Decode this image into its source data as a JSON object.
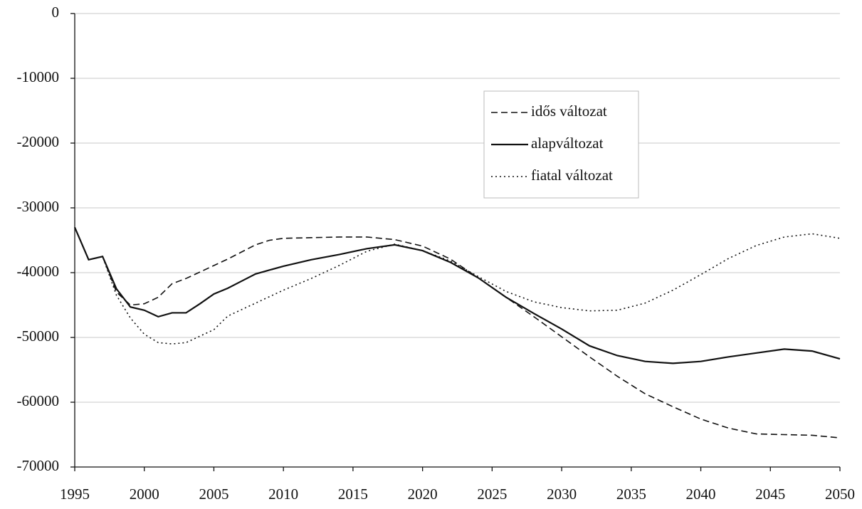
{
  "chart_data": {
    "type": "line",
    "x": [
      1995,
      1996,
      1997,
      1998,
      1999,
      2000,
      2001,
      2002,
      2003,
      2004,
      2005,
      2006,
      2007,
      2008,
      2009,
      2010,
      2012,
      2014,
      2016,
      2018,
      2020,
      2022,
      2024,
      2026,
      2028,
      2030,
      2032,
      2034,
      2036,
      2038,
      2040,
      2042,
      2044,
      2046,
      2048,
      2050
    ],
    "series": [
      {
        "name": "idős változat",
        "color": "#111111",
        "dash": "dashed",
        "values": [
          -33000,
          -38000,
          -37500,
          -43000,
          -45000,
          -44800,
          -43800,
          -41700,
          -40900,
          -39900,
          -38900,
          -37900,
          -36800,
          -35700,
          -35000,
          -34700,
          -34600,
          -34500,
          -34500,
          -34900,
          -35900,
          -37900,
          -40800,
          -43800,
          -46800,
          -49900,
          -53000,
          -56000,
          -58700,
          -60700,
          -62600,
          -64000,
          -64900,
          -65000,
          -65100,
          -65500
        ]
      },
      {
        "name": "alapváltozat",
        "color": "#111111",
        "dash": "solid",
        "values": [
          -33000,
          -38000,
          -37500,
          -42500,
          -45300,
          -45800,
          -46800,
          -46200,
          -46200,
          -44800,
          -43300,
          -42400,
          -41300,
          -40200,
          -39600,
          -39000,
          -38000,
          -37200,
          -36300,
          -35700,
          -36600,
          -38400,
          -40800,
          -43800,
          -46300,
          -48700,
          -51300,
          -52800,
          -53700,
          -54000,
          -53700,
          -53000,
          -52400,
          -51800,
          -52100,
          -53300
        ]
      },
      {
        "name": "fiatal változat",
        "color": "#111111",
        "dash": "dotted",
        "values": [
          -33000,
          -38000,
          -37500,
          -43500,
          -47000,
          -49500,
          -50800,
          -51000,
          -50800,
          -49800,
          -48800,
          -46700,
          -45700,
          -44700,
          -43700,
          -42700,
          -40900,
          -38900,
          -36700,
          -35600,
          -36600,
          -38200,
          -40600,
          -42900,
          -44500,
          -45400,
          -45900,
          -45800,
          -44700,
          -42700,
          -40300,
          -37800,
          -35800,
          -34500,
          -34000,
          -34700
        ]
      }
    ],
    "xlim": [
      1995,
      2050
    ],
    "xticks": [
      1995,
      2000,
      2005,
      2010,
      2015,
      2020,
      2025,
      2030,
      2035,
      2040,
      2045,
      2050
    ],
    "ylim": [
      -70000,
      0
    ],
    "yticks": [
      0,
      -10000,
      -20000,
      -30000,
      -40000,
      -50000,
      -60000,
      -70000
    ],
    "grid": true,
    "legend": "upper center"
  }
}
